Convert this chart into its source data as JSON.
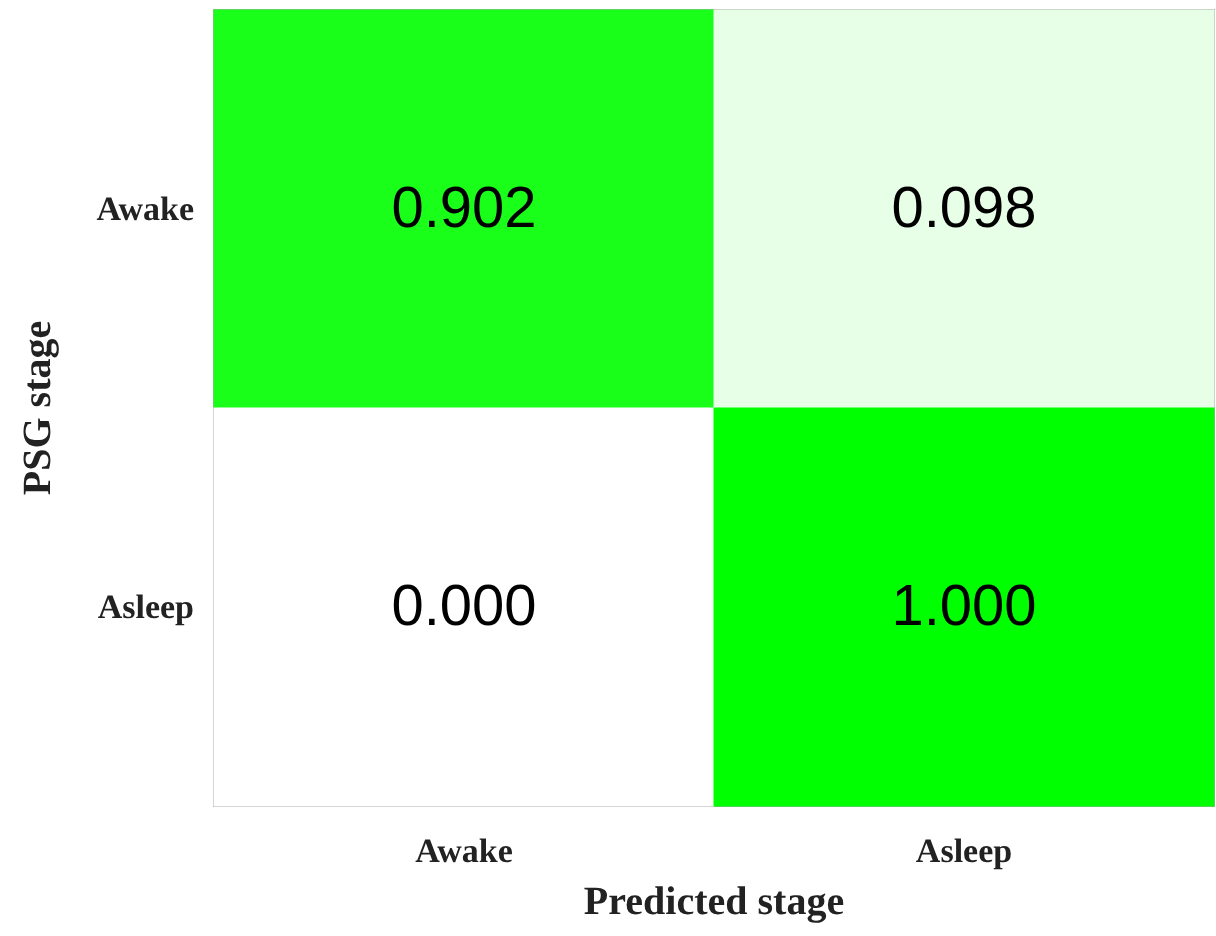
{
  "chart_data": {
    "type": "heatmap",
    "xlabel": "Predicted stage",
    "ylabel": "PSG stage",
    "categories": [
      "Awake",
      "Asleep"
    ],
    "y_categories": [
      "Awake",
      "Asleep"
    ],
    "cells": [
      [
        0.902,
        0.098
      ],
      [
        0.0,
        1.0
      ]
    ],
    "cell_labels": [
      [
        "0.902",
        "0.098"
      ],
      [
        "0.000",
        "1.000"
      ]
    ],
    "color": "#00ff00"
  }
}
